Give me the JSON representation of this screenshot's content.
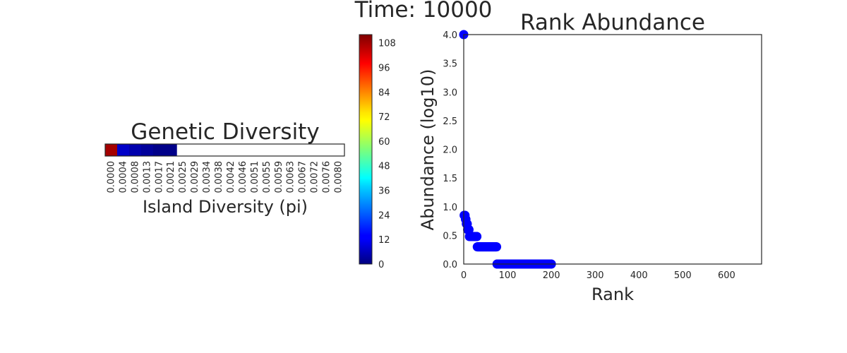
{
  "figure": {
    "suptitle": "Time: 10000"
  },
  "chart_data": [
    {
      "type": "heatmap",
      "title": "Genetic Diversity",
      "xlabel": "Island Diversity (pi)",
      "x_tick_labels": [
        "0.0000",
        "0.0004",
        "0.0008",
        "0.0013",
        "0.0017",
        "0.0021",
        "0.0025",
        "0.0029",
        "0.0034",
        "0.0038",
        "0.0042",
        "0.0046",
        "0.0051",
        "0.0055",
        "0.0059",
        "0.0063",
        "0.0067",
        "0.0072",
        "0.0076",
        "0.0080"
      ],
      "bins": [
        {
          "bin": "0.0000",
          "count": 108
        },
        {
          "bin": "0.0004",
          "count": 8
        },
        {
          "bin": "0.0008",
          "count": 5
        },
        {
          "bin": "0.0013",
          "count": 3
        },
        {
          "bin": "0.0017",
          "count": 1
        },
        {
          "bin": "0.0021",
          "count": 1
        },
        {
          "bin": "0.0025",
          "count": 0
        },
        {
          "bin": "0.0029",
          "count": 0
        },
        {
          "bin": "0.0034",
          "count": 0
        },
        {
          "bin": "0.0038",
          "count": 0
        },
        {
          "bin": "0.0042",
          "count": 0
        },
        {
          "bin": "0.0046",
          "count": 0
        },
        {
          "bin": "0.0051",
          "count": 0
        },
        {
          "bin": "0.0055",
          "count": 0
        },
        {
          "bin": "0.0059",
          "count": 0
        },
        {
          "bin": "0.0063",
          "count": 0
        },
        {
          "bin": "0.0067",
          "count": 0
        },
        {
          "bin": "0.0072",
          "count": 0
        },
        {
          "bin": "0.0076",
          "count": 0
        },
        {
          "bin": "0.0080",
          "count": 0
        }
      ],
      "colorbar": {
        "colormap": "jet",
        "range": [
          0,
          112
        ],
        "ticks": [
          0,
          12,
          24,
          36,
          48,
          60,
          72,
          84,
          96,
          108
        ]
      }
    },
    {
      "type": "scatter",
      "title": "Rank Abundance",
      "xlabel": "Rank",
      "ylabel": "Abundance (log10)",
      "xlim": [
        0,
        680
      ],
      "ylim": [
        0,
        4.0
      ],
      "x_ticks": [
        0,
        100,
        200,
        300,
        400,
        500,
        600
      ],
      "y_ticks": [
        "0.0",
        "0.5",
        "1.0",
        "1.5",
        "2.0",
        "2.5",
        "3.0",
        "3.5",
        "4.0"
      ],
      "marker_color": "#0000ff",
      "segments": [
        {
          "x_start": 0,
          "x_end": 0,
          "y": 4.0
        },
        {
          "x_start": 1,
          "x_end": 3,
          "y": 0.85
        },
        {
          "x_start": 4,
          "x_end": 5,
          "y": 0.78
        },
        {
          "x_start": 6,
          "x_end": 8,
          "y": 0.7
        },
        {
          "x_start": 9,
          "x_end": 12,
          "y": 0.6
        },
        {
          "x_start": 13,
          "x_end": 30,
          "y": 0.48
        },
        {
          "x_start": 31,
          "x_end": 75,
          "y": 0.3
        },
        {
          "x_start": 76,
          "x_end": 200,
          "y": 0.0
        }
      ]
    }
  ]
}
